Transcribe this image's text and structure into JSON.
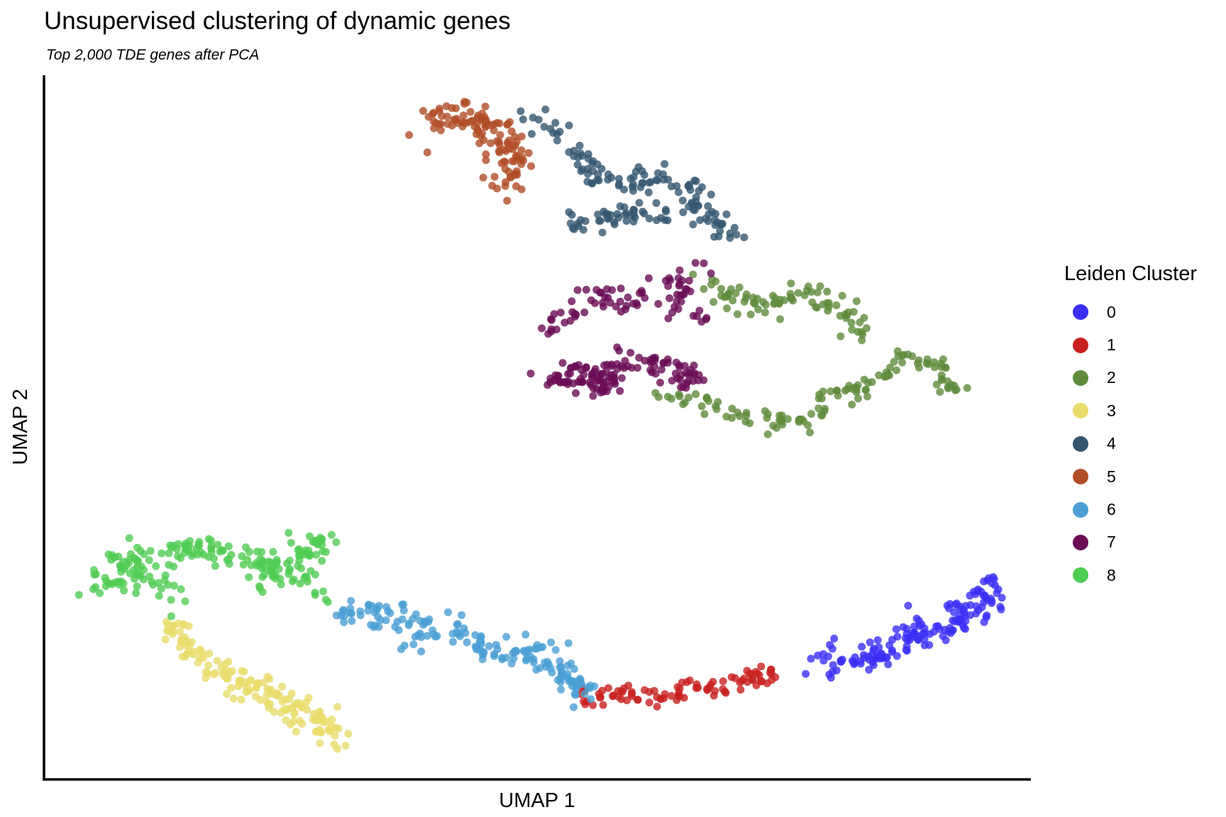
{
  "chart_data": {
    "type": "scatter",
    "title": "Unsupervised clustering of dynamic genes",
    "subtitle": "Top 2,000 TDE genes after PCA",
    "xlabel": "UMAP 1",
    "ylabel": "UMAP 2",
    "xlim": [
      0,
      100
    ],
    "ylim": [
      0,
      100
    ],
    "legend": {
      "title": "Leiden Cluster",
      "position": "right",
      "entries": [
        {
          "label": "0",
          "color": "#3b2ff5"
        },
        {
          "label": "1",
          "color": "#c8201f"
        },
        {
          "label": "2",
          "color": "#5f8b3b"
        },
        {
          "label": "3",
          "color": "#e9dc6b"
        },
        {
          "label": "4",
          "color": "#34566f"
        },
        {
          "label": "5",
          "color": "#b04d27"
        },
        {
          "label": "6",
          "color": "#4a9fd5"
        },
        {
          "label": "7",
          "color": "#6a0d55"
        },
        {
          "label": "8",
          "color": "#50cc52"
        }
      ]
    },
    "series": [
      {
        "cluster": "0",
        "color": "#3b2ff5",
        "path": [
          [
            78.5,
            17.5
          ],
          [
            82,
            16.5
          ],
          [
            86,
            18.5
          ],
          [
            88,
            20.5
          ],
          [
            91,
            21
          ],
          [
            93,
            23
          ],
          [
            95,
            24.5
          ],
          [
            96.5,
            27.5
          ]
        ],
        "count": 160,
        "spread": 1.1
      },
      {
        "cluster": "1",
        "color": "#c8201f",
        "path": [
          [
            54,
            11.5
          ],
          [
            58,
            12
          ],
          [
            61.5,
            11
          ],
          [
            64.5,
            12
          ],
          [
            68,
            13
          ],
          [
            71,
            14
          ],
          [
            74.5,
            15
          ]
        ],
        "count": 90,
        "spread": 0.7
      },
      {
        "cluster": "2",
        "color": "#5f8b3b",
        "path": [
          [
            67,
            71
          ],
          [
            70,
            68.5
          ],
          [
            72,
            67
          ],
          [
            74.5,
            68
          ],
          [
            77,
            69.5
          ],
          [
            79.5,
            67.5
          ],
          [
            81,
            66
          ],
          [
            83,
            63.5
          ]
        ],
        "count": 80,
        "spread": 0.8
      },
      {
        "cluster": "2",
        "color": "#5f8b3b",
        "path": [
          [
            63,
            54
          ],
          [
            67,
            53.5
          ],
          [
            70,
            52
          ],
          [
            73,
            51
          ],
          [
            76,
            50.5
          ],
          [
            78,
            51
          ],
          [
            80,
            54
          ],
          [
            83,
            56
          ],
          [
            86,
            58
          ],
          [
            88,
            60
          ],
          [
            89.5,
            59
          ],
          [
            91,
            57
          ],
          [
            92.5,
            55
          ]
        ],
        "count": 120,
        "spread": 0.7
      },
      {
        "cluster": "3",
        "color": "#e9dc6b",
        "path": [
          [
            12.5,
            22
          ],
          [
            13.5,
            20
          ],
          [
            15,
            18
          ],
          [
            17,
            16
          ],
          [
            19.5,
            14
          ],
          [
            22,
            12.5
          ],
          [
            24.5,
            11
          ],
          [
            27,
            9
          ],
          [
            29,
            6
          ]
        ],
        "count": 150,
        "spread": 1.0
      },
      {
        "cluster": "4",
        "color": "#34566f",
        "path": [
          [
            48.5,
            94.5
          ],
          [
            51,
            93
          ],
          [
            53,
            91
          ],
          [
            54.5,
            87.5
          ],
          [
            56,
            85
          ],
          [
            58,
            84.5
          ],
          [
            60,
            85
          ],
          [
            62,
            86
          ],
          [
            64,
            84.5
          ],
          [
            66.5,
            82.5
          ],
          [
            67.5,
            80
          ],
          [
            69,
            78
          ],
          [
            70,
            76.5
          ],
          [
            66,
            81
          ],
          [
            53,
            79
          ]
        ],
        "count": 160,
        "spread": 0.9
      },
      {
        "cluster": "5",
        "color": "#b04d27",
        "path": [
          [
            39.5,
            93
          ],
          [
            41.5,
            94.5
          ],
          [
            43.5,
            93.5
          ],
          [
            45,
            92
          ],
          [
            46.5,
            90.5
          ],
          [
            47.5,
            87.5
          ],
          [
            46.5,
            84
          ]
        ],
        "count": 120,
        "spread": 1.1
      },
      {
        "cluster": "6",
        "color": "#4a9fd5",
        "path": [
          [
            30,
            23
          ],
          [
            32,
            24.5
          ],
          [
            34,
            23.5
          ],
          [
            36.5,
            21.5
          ],
          [
            39,
            20
          ],
          [
            41.5,
            21.5
          ],
          [
            43,
            20.5
          ],
          [
            45,
            18
          ],
          [
            47.5,
            17
          ],
          [
            49,
            18
          ],
          [
            51,
            17.5
          ],
          [
            53,
            14
          ],
          [
            55,
            12
          ]
        ],
        "count": 170,
        "spread": 1.0
      },
      {
        "cluster": "7",
        "color": "#6a0d55",
        "path": [
          [
            51,
            63
          ],
          [
            54,
            66.5
          ],
          [
            56.5,
            68
          ],
          [
            59,
            67.5
          ],
          [
            61.5,
            69
          ],
          [
            64,
            71
          ],
          [
            66,
            71.5
          ],
          [
            64,
            66.5
          ],
          [
            67,
            64.5
          ]
        ],
        "count": 80,
        "spread": 1.0
      },
      {
        "cluster": "7",
        "color": "#6a0d55",
        "path": [
          [
            51.5,
            56
          ],
          [
            54,
            58.5
          ],
          [
            55.5,
            57
          ],
          [
            57,
            55
          ],
          [
            59,
            60
          ],
          [
            61,
            59
          ],
          [
            63,
            58
          ],
          [
            65,
            57.5
          ],
          [
            66,
            56
          ]
        ],
        "count": 130,
        "spread": 0.9
      },
      {
        "cluster": "8",
        "color": "#50cc52",
        "path": [
          [
            4.5,
            26
          ],
          [
            6,
            28
          ],
          [
            8,
            30.5
          ],
          [
            10,
            32
          ],
          [
            9,
            26.5
          ],
          [
            12,
            28
          ],
          [
            13,
            25.5
          ]
        ],
        "count": 70,
        "spread": 1.1
      },
      {
        "cluster": "8",
        "color": "#50cc52",
        "path": [
          [
            12.5,
            32
          ],
          [
            14.5,
            33
          ],
          [
            17,
            32.5
          ],
          [
            19,
            32
          ],
          [
            21,
            31.5
          ],
          [
            22.5,
            30
          ],
          [
            23.5,
            29
          ],
          [
            22.5,
            27.5
          ]
        ],
        "count": 90,
        "spread": 0.9
      },
      {
        "cluster": "8",
        "color": "#50cc52",
        "path": [
          [
            26.5,
            33.5
          ],
          [
            28,
            34
          ],
          [
            26.5,
            32
          ],
          [
            26,
            30
          ],
          [
            27,
            28
          ],
          [
            28.5,
            26
          ]
        ],
        "count": 50,
        "spread": 0.8
      }
    ]
  }
}
